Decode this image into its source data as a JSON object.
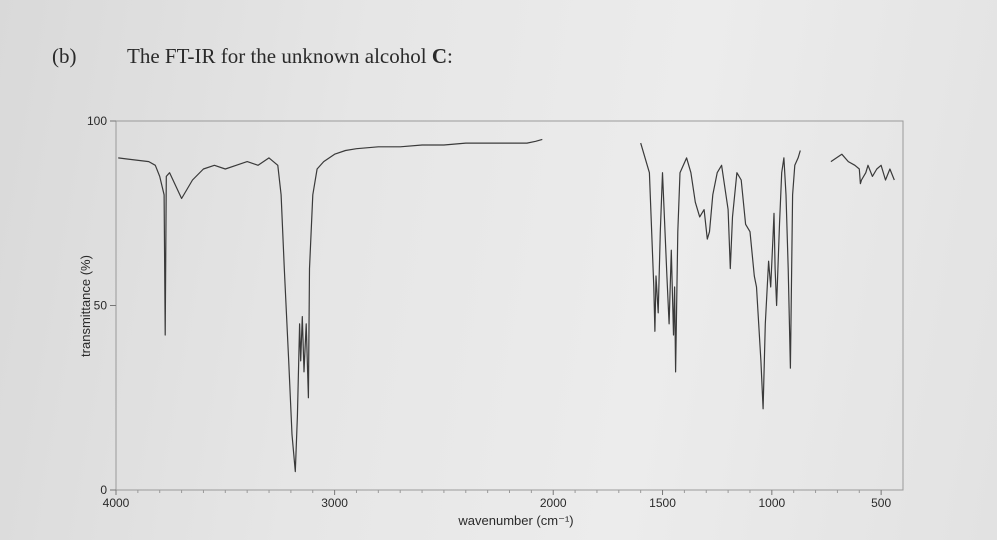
{
  "header": {
    "part_label": "(b)",
    "title_prefix": "The FT-IR for the unknown alcohol ",
    "title_bold": "C",
    "title_suffix": ":"
  },
  "chart_data": {
    "type": "line",
    "title": "",
    "xlabel": "wavenumber (cm⁻¹)",
    "ylabel": "transmittance (%)",
    "xlim": [
      4000,
      400
    ],
    "ylim": [
      0,
      100
    ],
    "x_reversed": true,
    "x_ticks": [
      4000,
      3000,
      2000,
      1500,
      1000,
      500
    ],
    "y_ticks": [
      0,
      50,
      100
    ],
    "grid": false,
    "line_color": "#3a3a3a",
    "segments": [
      [
        [
          3990,
          90
        ],
        [
          3850,
          89
        ],
        [
          3820,
          88
        ],
        [
          3800,
          85
        ],
        [
          3780,
          80
        ],
        [
          3775,
          42
        ],
        [
          3770,
          85
        ],
        [
          3755,
          86
        ],
        [
          3700,
          79
        ],
        [
          3650,
          84
        ],
        [
          3600,
          87
        ],
        [
          3550,
          88
        ],
        [
          3500,
          87
        ],
        [
          3450,
          88
        ],
        [
          3400,
          89
        ],
        [
          3350,
          88
        ],
        [
          3300,
          90
        ],
        [
          3260,
          88
        ],
        [
          3245,
          80
        ],
        [
          3230,
          60
        ],
        [
          3210,
          35
        ],
        [
          3195,
          15
        ],
        [
          3180,
          5
        ],
        [
          3170,
          20
        ],
        [
          3160,
          45
        ],
        [
          3155,
          35
        ],
        [
          3148,
          47
        ],
        [
          3140,
          32
        ],
        [
          3130,
          45
        ],
        [
          3120,
          25
        ],
        [
          3115,
          60
        ],
        [
          3100,
          80
        ],
        [
          3080,
          87
        ],
        [
          3050,
          89
        ],
        [
          3000,
          91
        ],
        [
          2950,
          92
        ],
        [
          2900,
          92.5
        ],
        [
          2800,
          93
        ],
        [
          2700,
          93
        ],
        [
          2600,
          93.5
        ],
        [
          2500,
          93.5
        ],
        [
          2400,
          94
        ],
        [
          2300,
          94
        ],
        [
          2200,
          94
        ],
        [
          2120,
          94
        ],
        [
          2080,
          94.5
        ],
        [
          2050,
          95
        ]
      ],
      [
        [
          1600,
          94
        ],
        [
          1560,
          86
        ],
        [
          1540,
          55
        ],
        [
          1535,
          43
        ],
        [
          1530,
          58
        ],
        [
          1520,
          48
        ],
        [
          1510,
          70
        ],
        [
          1500,
          86
        ],
        [
          1480,
          58
        ],
        [
          1470,
          45
        ],
        [
          1460,
          65
        ],
        [
          1450,
          42
        ],
        [
          1445,
          55
        ],
        [
          1440,
          32
        ],
        [
          1430,
          70
        ],
        [
          1420,
          86
        ],
        [
          1390,
          90
        ],
        [
          1370,
          86
        ],
        [
          1350,
          78
        ],
        [
          1330,
          74
        ],
        [
          1310,
          76
        ],
        [
          1295,
          68
        ],
        [
          1285,
          70
        ],
        [
          1270,
          80
        ],
        [
          1250,
          86
        ],
        [
          1230,
          88
        ],
        [
          1200,
          76
        ],
        [
          1190,
          60
        ],
        [
          1180,
          74
        ],
        [
          1160,
          86
        ],
        [
          1140,
          84
        ],
        [
          1120,
          72
        ],
        [
          1100,
          70
        ],
        [
          1080,
          58
        ],
        [
          1070,
          55
        ],
        [
          1060,
          45
        ],
        [
          1050,
          35
        ],
        [
          1040,
          22
        ],
        [
          1030,
          45
        ],
        [
          1015,
          62
        ],
        [
          1005,
          55
        ],
        [
          995,
          68
        ],
        [
          990,
          75
        ],
        [
          985,
          60
        ],
        [
          978,
          50
        ],
        [
          965,
          72
        ],
        [
          955,
          86
        ],
        [
          945,
          90
        ],
        [
          935,
          80
        ],
        [
          925,
          60
        ],
        [
          915,
          33
        ],
        [
          905,
          80
        ],
        [
          895,
          88
        ],
        [
          880,
          90
        ],
        [
          870,
          92
        ]
      ],
      [
        [
          730,
          89
        ],
        [
          680,
          91
        ],
        [
          650,
          89
        ],
        [
          620,
          88
        ],
        [
          600,
          87
        ],
        [
          595,
          83
        ],
        [
          590,
          84
        ],
        [
          570,
          86
        ],
        [
          560,
          88
        ],
        [
          540,
          85
        ],
        [
          520,
          87
        ],
        [
          500,
          88
        ],
        [
          480,
          84
        ],
        [
          460,
          87
        ],
        [
          440,
          84
        ]
      ]
    ]
  }
}
